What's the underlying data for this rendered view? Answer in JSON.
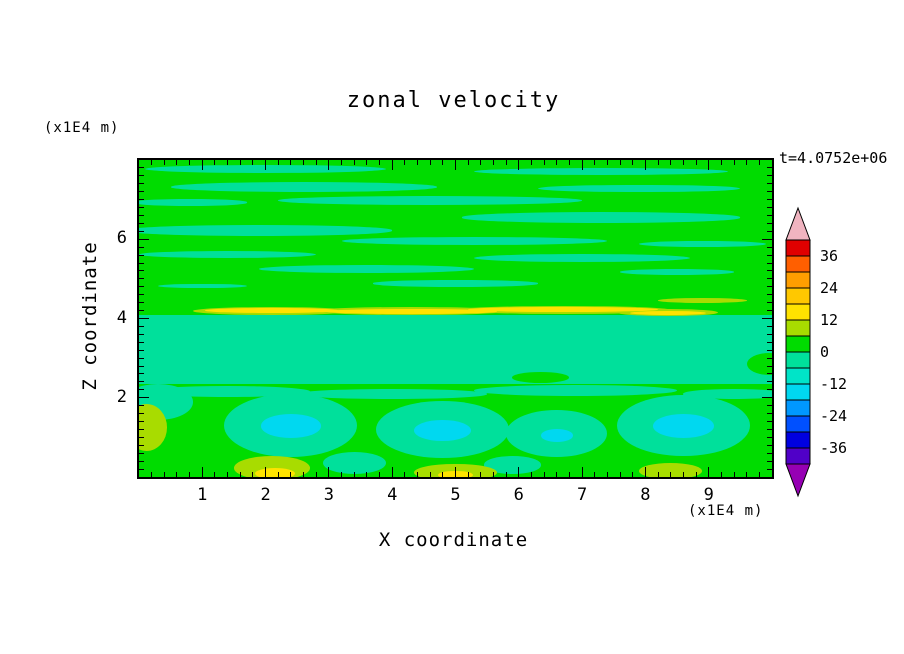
{
  "chart_data": {
    "type": "heatmap",
    "subtype": "filled-contour",
    "title": "zonal velocity",
    "xlabel": "X coordinate",
    "ylabel": "Z coordinate",
    "x_units_label": "(x1E4 m)",
    "z_units_label": "(x1E4 m)",
    "time_annotation": "t=4.0752e+06",
    "xlim": [
      0,
      10
    ],
    "zlim": [
      0,
      8
    ],
    "xticks": [
      1,
      2,
      3,
      4,
      5,
      6,
      7,
      8,
      9
    ],
    "zticks": [
      2,
      4,
      6
    ],
    "colorbar": {
      "labels": [
        "36",
        "24",
        "12",
        "0",
        "-12",
        "-24",
        "-36"
      ],
      "over_color": "#f0b4c0",
      "under_color": "#9600b4",
      "segments": [
        {
          "min": 36,
          "max": 42,
          "color": "#e00000"
        },
        {
          "min": 30,
          "max": 36,
          "color": "#ff5f00"
        },
        {
          "min": 24,
          "max": 30,
          "color": "#ff9e00"
        },
        {
          "min": 18,
          "max": 24,
          "color": "#ffc800"
        },
        {
          "min": 12,
          "max": 18,
          "color": "#ffe300"
        },
        {
          "min": 6,
          "max": 12,
          "color": "#a8dc00"
        },
        {
          "min": 0,
          "max": 6,
          "color": "#00dc00"
        },
        {
          "min": -6,
          "max": 0,
          "color": "#00e09b"
        },
        {
          "min": -12,
          "max": -6,
          "color": "#00e4c8"
        },
        {
          "min": -18,
          "max": -12,
          "color": "#00d8f0"
        },
        {
          "min": -24,
          "max": -18,
          "color": "#0098ff"
        },
        {
          "min": -30,
          "max": -24,
          "color": "#0050ff"
        },
        {
          "min": -36,
          "max": -30,
          "color": "#0000e0"
        },
        {
          "min": -42,
          "max": -36,
          "color": "#5000c8"
        }
      ]
    },
    "field": {
      "base_value": 3,
      "bands": [
        {
          "z_min": 2.35,
          "z_max": 4.08,
          "value": -3
        }
      ],
      "blobs": [
        {
          "x": 9.95,
          "z": 2.85,
          "rx": 0.35,
          "rz": 0.28,
          "value": 3
        },
        {
          "x": 6.35,
          "z": 2.5,
          "rx": 0.45,
          "rz": 0.14,
          "value": 3
        },
        {
          "x": 2.0,
          "z": 7.78,
          "rx": 1.9,
          "rz": 0.1,
          "value": -3
        },
        {
          "x": 7.3,
          "z": 7.72,
          "rx": 2.0,
          "rz": 0.09,
          "value": -3
        },
        {
          "x": 2.6,
          "z": 7.32,
          "rx": 2.1,
          "rz": 0.12,
          "value": -3
        },
        {
          "x": 7.9,
          "z": 7.28,
          "rx": 1.6,
          "rz": 0.1,
          "value": -3
        },
        {
          "x": 4.6,
          "z": 6.98,
          "rx": 2.4,
          "rz": 0.11,
          "value": -3
        },
        {
          "x": 0.8,
          "z": 6.93,
          "rx": 0.9,
          "rz": 0.08,
          "value": -3
        },
        {
          "x": 7.3,
          "z": 6.55,
          "rx": 2.2,
          "rz": 0.13,
          "value": -3
        },
        {
          "x": 1.9,
          "z": 6.22,
          "rx": 2.1,
          "rz": 0.13,
          "value": -3
        },
        {
          "x": 5.3,
          "z": 5.95,
          "rx": 2.1,
          "rz": 0.1,
          "value": -3
        },
        {
          "x": 8.9,
          "z": 5.88,
          "rx": 1.0,
          "rz": 0.08,
          "value": -3
        },
        {
          "x": 1.4,
          "z": 5.62,
          "rx": 1.4,
          "rz": 0.09,
          "value": -3
        },
        {
          "x": 7.0,
          "z": 5.52,
          "rx": 1.7,
          "rz": 0.1,
          "value": -3
        },
        {
          "x": 3.6,
          "z": 5.25,
          "rx": 1.7,
          "rz": 0.1,
          "value": -3
        },
        {
          "x": 8.5,
          "z": 5.18,
          "rx": 0.9,
          "rz": 0.07,
          "value": -3
        },
        {
          "x": 5.0,
          "z": 4.88,
          "rx": 1.3,
          "rz": 0.08,
          "value": -3
        },
        {
          "x": 1.0,
          "z": 4.82,
          "rx": 0.7,
          "rz": 0.06,
          "value": -3
        },
        {
          "x": 1.4,
          "z": 2.15,
          "rx": 1.3,
          "rz": 0.14,
          "value": -3
        },
        {
          "x": 4.0,
          "z": 2.1,
          "rx": 1.5,
          "rz": 0.12,
          "value": -3
        },
        {
          "x": 6.9,
          "z": 2.18,
          "rx": 1.6,
          "rz": 0.14,
          "value": -3
        },
        {
          "x": 9.4,
          "z": 2.1,
          "rx": 0.8,
          "rz": 0.12,
          "value": -3
        },
        {
          "x": 0.3,
          "z": 1.9,
          "rx": 0.55,
          "rz": 0.45,
          "value": -3
        },
        {
          "x": 2.4,
          "z": 1.3,
          "rx": 1.05,
          "rz": 0.8,
          "value": -3
        },
        {
          "x": 4.8,
          "z": 1.2,
          "rx": 1.05,
          "rz": 0.72,
          "value": -3
        },
        {
          "x": 6.6,
          "z": 1.1,
          "rx": 0.8,
          "rz": 0.6,
          "value": -3
        },
        {
          "x": 8.6,
          "z": 1.3,
          "rx": 1.05,
          "rz": 0.78,
          "value": -3
        },
        {
          "x": 3.4,
          "z": 0.35,
          "rx": 0.5,
          "rz": 0.28,
          "value": -3
        },
        {
          "x": 5.9,
          "z": 0.3,
          "rx": 0.45,
          "rz": 0.22,
          "value": -3
        },
        {
          "x": 2.4,
          "z": 1.28,
          "rx": 0.48,
          "rz": 0.3,
          "value": -13
        },
        {
          "x": 4.8,
          "z": 1.18,
          "rx": 0.45,
          "rz": 0.27,
          "value": -13
        },
        {
          "x": 8.6,
          "z": 1.28,
          "rx": 0.48,
          "rz": 0.3,
          "value": -13
        },
        {
          "x": 6.6,
          "z": 1.05,
          "rx": 0.25,
          "rz": 0.16,
          "value": -13
        },
        {
          "x": 0.12,
          "z": 1.25,
          "rx": 0.33,
          "rz": 0.6,
          "value": 9
        },
        {
          "x": 2.1,
          "z": 0.22,
          "rx": 0.6,
          "rz": 0.3,
          "value": 9
        },
        {
          "x": 5.0,
          "z": 0.12,
          "rx": 0.65,
          "rz": 0.22,
          "value": 9
        },
        {
          "x": 8.4,
          "z": 0.15,
          "rx": 0.5,
          "rz": 0.2,
          "value": 9
        },
        {
          "x": 2.1,
          "z": 4.2,
          "rx": 1.25,
          "rz": 0.1,
          "value": 9
        },
        {
          "x": 4.3,
          "z": 4.18,
          "rx": 1.55,
          "rz": 0.1,
          "value": 9
        },
        {
          "x": 6.7,
          "z": 4.22,
          "rx": 1.7,
          "rz": 0.1,
          "value": 9
        },
        {
          "x": 8.35,
          "z": 4.15,
          "rx": 0.8,
          "rz": 0.09,
          "value": 9
        },
        {
          "x": 8.9,
          "z": 4.45,
          "rx": 0.7,
          "rz": 0.06,
          "value": 9
        },
        {
          "x": 2.1,
          "z": 4.2,
          "rx": 1.05,
          "rz": 0.06,
          "value": 15
        },
        {
          "x": 4.3,
          "z": 4.18,
          "rx": 1.35,
          "rz": 0.06,
          "value": 15
        },
        {
          "x": 6.7,
          "z": 4.22,
          "rx": 1.5,
          "rz": 0.06,
          "value": 15
        },
        {
          "x": 8.35,
          "z": 4.15,
          "rx": 0.6,
          "rz": 0.05,
          "value": 15
        },
        {
          "x": 2.15,
          "z": 0.08,
          "rx": 0.32,
          "rz": 0.14,
          "value": 15
        },
        {
          "x": 5.0,
          "z": 0.05,
          "rx": 0.28,
          "rz": 0.11,
          "value": 15
        }
      ]
    }
  }
}
